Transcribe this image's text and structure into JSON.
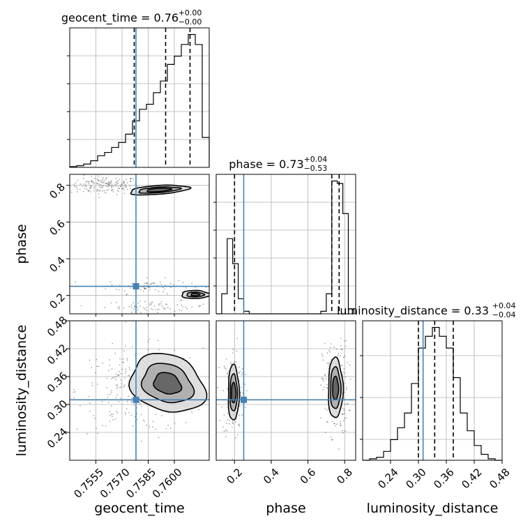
{
  "colors": {
    "truth": "#4682b4",
    "hist": "#000000",
    "grid": "#b0b0b0"
  },
  "chart_data": {
    "type": "corner",
    "parameters": [
      "geocent_time",
      "phase",
      "luminosity_distance"
    ],
    "truths": {
      "geocent_time": 0.7578,
      "phase": 0.25,
      "luminosity_distance": 0.31
    },
    "titles": [
      {
        "param": "geocent_time",
        "text": "geocent_time = 0.76",
        "plus": "+0.00",
        "minus": "−0.00"
      },
      {
        "param": "phase",
        "text": "phase = 0.73",
        "plus": "+0.04",
        "minus": "−0.53"
      },
      {
        "param": "luminosity_distance",
        "text": "luminosity_distance = 0.33",
        "plus": "+0.04",
        "minus": "−0.04"
      }
    ],
    "axes": {
      "geocent_time": {
        "range": [
          0.754,
          0.762
        ],
        "ticks": [
          0.7555,
          0.757,
          0.7585,
          0.76
        ],
        "tick_labels": [
          "0.7555",
          "0.7570",
          "0.7585",
          "0.7600"
        ],
        "label": "geocent_time"
      },
      "phase": {
        "range": [
          0.1,
          0.86
        ],
        "ticks": [
          0.2,
          0.4,
          0.6,
          0.8
        ],
        "tick_labels": [
          "0.2",
          "0.4",
          "0.6",
          "0.8"
        ],
        "label": "phase"
      },
      "luminosity_distance": {
        "range": [
          0.18,
          0.48
        ],
        "ticks": [
          0.24,
          0.3,
          0.36,
          0.42,
          0.48
        ],
        "tick_labels": [
          "0.24",
          "0.30",
          "0.36",
          "0.42",
          "0.48"
        ],
        "label": "luminosity_distance"
      }
    },
    "histograms": {
      "geocent_time": {
        "edges": [
          0.754,
          0.7544,
          0.7548,
          0.7552,
          0.7556,
          0.756,
          0.7564,
          0.7568,
          0.7572,
          0.7576,
          0.758,
          0.7584,
          0.7588,
          0.7592,
          0.7596,
          0.76,
          0.7604,
          0.7608,
          0.7612,
          0.7616,
          0.762
        ],
        "values": [
          0.005,
          0.01,
          0.02,
          0.04,
          0.07,
          0.09,
          0.12,
          0.15,
          0.2,
          0.28,
          0.35,
          0.38,
          0.45,
          0.52,
          0.62,
          0.67,
          0.74,
          0.8,
          0.74,
          0.18
        ],
        "quantiles": [
          0.7577,
          0.7595,
          0.7609
        ]
      },
      "phase": {
        "edges": [
          0.1,
          0.13,
          0.16,
          0.19,
          0.22,
          0.25,
          0.28,
          0.31,
          0.34,
          0.37,
          0.4,
          0.43,
          0.46,
          0.49,
          0.52,
          0.55,
          0.58,
          0.61,
          0.64,
          0.67,
          0.7,
          0.73,
          0.76,
          0.79,
          0.82,
          0.85
        ],
        "values": [
          0.0,
          0.08,
          0.3,
          0.2,
          0.06,
          0.01,
          0.0,
          0.0,
          0.0,
          0.0,
          0.0,
          0.0,
          0.0,
          0.0,
          0.0,
          0.0,
          0.0,
          0.0,
          0.0,
          0.01,
          0.08,
          0.53,
          0.52,
          0.4,
          0.02
        ],
        "quantiles": [
          0.2,
          0.73,
          0.77
        ]
      },
      "luminosity_distance": {
        "edges": [
          0.18,
          0.195,
          0.21,
          0.225,
          0.24,
          0.255,
          0.27,
          0.285,
          0.3,
          0.315,
          0.33,
          0.345,
          0.36,
          0.375,
          0.39,
          0.405,
          0.42,
          0.435,
          0.45,
          0.465,
          0.48
        ],
        "values": [
          0.0,
          0.005,
          0.01,
          0.03,
          0.07,
          0.11,
          0.16,
          0.26,
          0.38,
          0.42,
          0.45,
          0.42,
          0.38,
          0.28,
          0.16,
          0.1,
          0.05,
          0.02,
          0.005,
          0.0
        ],
        "quantiles": [
          0.3,
          0.335,
          0.375
        ]
      }
    },
    "contours_2d": {
      "geocent_time__phase": {
        "blobs": [
          {
            "center": [
              0.7591,
              0.775
            ],
            "levels": [
              [
                0.0017,
                0.024
              ],
              [
                0.0012,
                0.015
              ],
              [
                0.0007,
                0.009
              ]
            ],
            "tilt": -4
          },
          {
            "center": [
              0.7612,
              0.205
            ],
            "levels": [
              [
                0.0008,
                0.022
              ],
              [
                0.0005,
                0.013
              ],
              [
                0.00025,
                0.007
              ]
            ],
            "tilt": 0
          }
        ],
        "scatter": [
          {
            "center": [
              0.756,
              0.8
            ],
            "spread": [
              0.001,
              0.025
            ],
            "n": 160
          },
          {
            "center": [
              0.7585,
              0.25
            ],
            "spread": [
              0.0012,
              0.02
            ],
            "n": 70
          },
          {
            "center": [
              0.759,
              0.14
            ],
            "spread": [
              0.0015,
              0.015
            ],
            "n": 70
          }
        ]
      },
      "geocent_time__luminosity_distance": {
        "blobs": [
          {
            "center": [
              0.7596,
              0.345
            ],
            "levels": [
              [
                0.0022,
                0.06
              ],
              [
                0.0015,
                0.04
              ],
              [
                0.0008,
                0.022
              ]
            ],
            "tilt": 20
          }
        ],
        "scatter": [
          {
            "center": [
              0.758,
              0.33
            ],
            "spread": [
              0.0018,
              0.045
            ],
            "n": 300
          }
        ]
      },
      "phase__luminosity_distance": {
        "blobs": [
          {
            "center": [
              0.195,
              0.325
            ],
            "levels": [
              [
                0.03,
                0.06
              ],
              [
                0.02,
                0.04
              ],
              [
                0.012,
                0.022
              ]
            ],
            "tilt": 0
          },
          {
            "center": [
              0.75,
              0.335
            ],
            "levels": [
              [
                0.04,
                0.065
              ],
              [
                0.028,
                0.045
              ],
              [
                0.016,
                0.025
              ]
            ],
            "tilt": 0
          }
        ],
        "scatter": [
          {
            "center": [
              0.195,
              0.325
            ],
            "spread": [
              0.03,
              0.05
            ],
            "n": 160
          },
          {
            "center": [
              0.75,
              0.335
            ],
            "spread": [
              0.035,
              0.05
            ],
            "n": 200
          }
        ]
      }
    },
    "grid": true
  }
}
